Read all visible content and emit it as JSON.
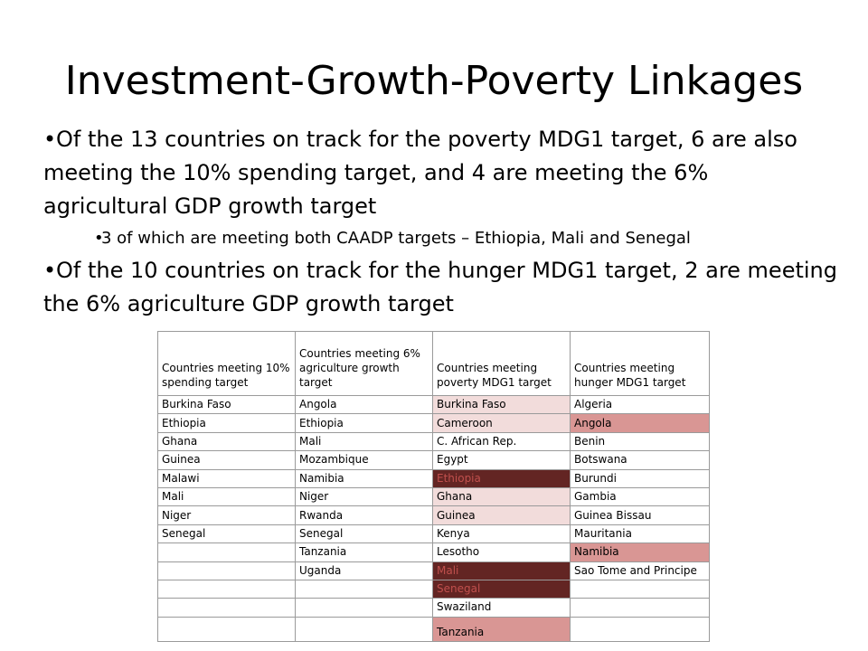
{
  "title": "Investment-Growth-Poverty Linkages",
  "bullets": {
    "b1": "Of the 13 countries on track for the poverty MDG1 target, 6 are also meeting the 10% spending target, and 4 are meeting the 6% agricultural GDP growth target",
    "b2": "3 of which are meeting both CAADP targets – Ethiopia, Mali and Senegal",
    "b3": "Of the 10 countries on track for the hunger MDG1 target, 2 are meeting the 6% agriculture GDP growth target"
  },
  "table": {
    "headers": [
      "Countries meeting 10% spending target",
      "Countries meeting 6% agriculture growth target",
      "Countries meeting poverty MDG1 target",
      "Countries meeting hunger MDG1 target"
    ],
    "shade_colors": {
      "light": "#f2dcdb",
      "mid": "#d99694",
      "dark": "#632523"
    },
    "rows": [
      [
        {
          "t": "Burkina Faso"
        },
        {
          "t": "Angola"
        },
        {
          "t": "Burkina Faso",
          "s": "light"
        },
        {
          "t": "Algeria"
        }
      ],
      [
        {
          "t": "Ethiopia"
        },
        {
          "t": "Ethiopia"
        },
        {
          "t": "Cameroon",
          "s": "light"
        },
        {
          "t": "Angola",
          "s": "mid"
        }
      ],
      [
        {
          "t": "Ghana"
        },
        {
          "t": "Mali"
        },
        {
          "t": "C. African Rep."
        },
        {
          "t": "Benin"
        }
      ],
      [
        {
          "t": "Guinea"
        },
        {
          "t": "Mozambique"
        },
        {
          "t": "Egypt"
        },
        {
          "t": "Botswana"
        }
      ],
      [
        {
          "t": "Malawi"
        },
        {
          "t": "Namibia"
        },
        {
          "t": "Ethiopia",
          "s": "dark"
        },
        {
          "t": "Burundi"
        }
      ],
      [
        {
          "t": "Mali"
        },
        {
          "t": "Niger"
        },
        {
          "t": "Ghana",
          "s": "light"
        },
        {
          "t": "Gambia"
        }
      ],
      [
        {
          "t": "Niger"
        },
        {
          "t": "Rwanda"
        },
        {
          "t": "Guinea",
          "s": "light"
        },
        {
          "t": "Guinea Bissau"
        }
      ],
      [
        {
          "t": "Senegal"
        },
        {
          "t": "Senegal"
        },
        {
          "t": "Kenya"
        },
        {
          "t": "Mauritania"
        }
      ],
      [
        {
          "t": ""
        },
        {
          "t": "Tanzania"
        },
        {
          "t": "Lesotho"
        },
        {
          "t": "Namibia",
          "s": "mid"
        }
      ],
      [
        {
          "t": ""
        },
        {
          "t": "Uganda"
        },
        {
          "t": "Mali",
          "s": "dark"
        },
        {
          "t": "Sao Tome and Principe"
        }
      ],
      [
        {
          "t": ""
        },
        {
          "t": ""
        },
        {
          "t": "Senegal",
          "s": "dark"
        },
        {
          "t": ""
        }
      ],
      [
        {
          "t": ""
        },
        {
          "t": ""
        },
        {
          "t": "Swaziland"
        },
        {
          "t": ""
        }
      ],
      [
        {
          "t": ""
        },
        {
          "t": ""
        },
        {
          "t": "Tanzania",
          "s": "mid"
        },
        {
          "t": ""
        }
      ]
    ]
  }
}
